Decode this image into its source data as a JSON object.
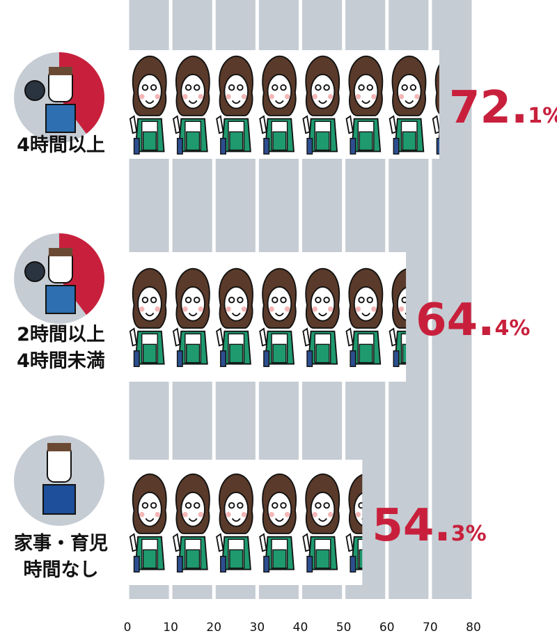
{
  "chart_data": {
    "type": "pictograph",
    "categories": [
      "4時間以上",
      "2時間以上\n4時間未満",
      "家事・育児\n時間なし"
    ],
    "values": [
      72.1,
      64.4,
      54.3
    ],
    "value_labels": [
      "72.1%",
      "64.4%",
      "54.3%"
    ],
    "color": "#c8203c",
    "xlim": [
      0,
      80
    ],
    "xticks": [
      0,
      10,
      20,
      30,
      40,
      50,
      60,
      70,
      80
    ]
  }
}
